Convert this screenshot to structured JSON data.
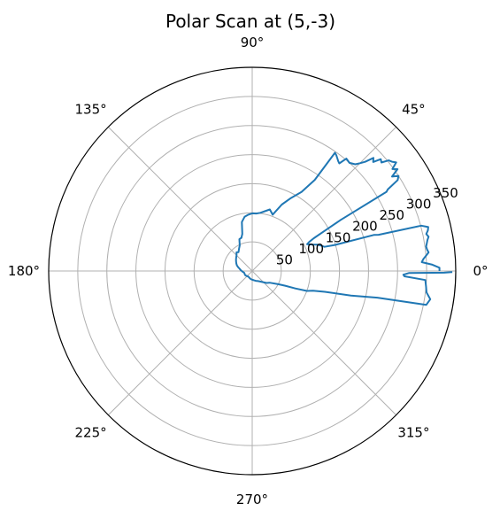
{
  "chart_data": {
    "type": "polar-line",
    "title": "Polar Scan at (5,-3)",
    "angle_tick_labels": [
      "0°",
      "45°",
      "90°",
      "135°",
      "180°",
      "225°",
      "270°",
      "315°"
    ],
    "angle_ticks_deg": [
      0,
      45,
      90,
      135,
      180,
      225,
      270,
      315
    ],
    "radial_tick_labels": [
      "50",
      "100",
      "150",
      "200",
      "250",
      "300",
      "350"
    ],
    "radial_ticks": [
      50,
      100,
      150,
      200,
      250,
      300,
      350
    ],
    "radial_label_angle_deg": 22.5,
    "rmax": 350,
    "grid": true,
    "series": [
      {
        "color": "#1f77b4",
        "points": [
          [
            0,
            322
          ],
          [
            1,
            322
          ],
          [
            2,
            310
          ],
          [
            3,
            292
          ],
          [
            4,
            295
          ],
          [
            5,
            300
          ],
          [
            6,
            305
          ],
          [
            7,
            303
          ],
          [
            8,
            302
          ],
          [
            9,
            304
          ],
          [
            10,
            306
          ],
          [
            11,
            309
          ],
          [
            12,
            306
          ],
          [
            13,
            310
          ],
          [
            14,
            312
          ],
          [
            15,
            301
          ],
          [
            16,
            226
          ],
          [
            16.5,
            218
          ],
          [
            17.5,
            149
          ],
          [
            18.5,
            131
          ],
          [
            20,
            127
          ],
          [
            22,
            121
          ],
          [
            24,
            112
          ],
          [
            26,
            105
          ],
          [
            27,
            110
          ],
          [
            28,
            120
          ],
          [
            29,
            142
          ],
          [
            30,
            176
          ],
          [
            30.5,
            268
          ],
          [
            31,
            272
          ],
          [
            32,
            295
          ],
          [
            33,
            300
          ],
          [
            34,
            290
          ],
          [
            35,
            305
          ],
          [
            36,
            298
          ],
          [
            37,
            310
          ],
          [
            38,
            305
          ],
          [
            39,
            302
          ],
          [
            40,
            290
          ],
          [
            41,
            293
          ],
          [
            42,
            280
          ],
          [
            43,
            285
          ],
          [
            44,
            270
          ],
          [
            45,
            262
          ],
          [
            46,
            255
          ],
          [
            48,
            250
          ],
          [
            50,
            252
          ],
          [
            51,
            238
          ],
          [
            52,
            240
          ],
          [
            53,
            243
          ],
          [
            54,
            246
          ],
          [
            55,
            248
          ],
          [
            55.5,
            190
          ],
          [
            58,
            160
          ],
          [
            62,
            142
          ],
          [
            66,
            125
          ],
          [
            70,
            103
          ],
          [
            74,
            110
          ],
          [
            78,
            105
          ],
          [
            82,
            101
          ],
          [
            86,
            99
          ],
          [
            90,
            99
          ],
          [
            94,
            97
          ],
          [
            98,
            94
          ],
          [
            102,
            86
          ],
          [
            105,
            66
          ],
          [
            108,
            60
          ],
          [
            112,
            59
          ],
          [
            116,
            49
          ],
          [
            120,
            45
          ],
          [
            126,
            40
          ],
          [
            130,
            42
          ],
          [
            135,
            38
          ],
          [
            140,
            36
          ],
          [
            145,
            34
          ],
          [
            150,
            32
          ],
          [
            155,
            30
          ],
          [
            160,
            28
          ],
          [
            165,
            25
          ],
          [
            170,
            22
          ],
          [
            175,
            20
          ],
          [
            180,
            18
          ],
          [
            186,
            16
          ],
          [
            193,
            14
          ],
          [
            200,
            14
          ],
          [
            210,
            14
          ],
          [
            220,
            13
          ],
          [
            230,
            12
          ],
          [
            240,
            12
          ],
          [
            250,
            13
          ],
          [
            260,
            14
          ],
          [
            270,
            15
          ],
          [
            280,
            16
          ],
          [
            290,
            18
          ],
          [
            300,
            20
          ],
          [
            310,
            24
          ],
          [
            320,
            32
          ],
          [
            326,
            36
          ],
          [
            333,
            50
          ],
          [
            336,
            62
          ],
          [
            338,
            80
          ],
          [
            340,
            100
          ],
          [
            342,
            110
          ],
          [
            344,
            130
          ],
          [
            346,
            175
          ],
          [
            348,
            220
          ],
          [
            349,
            305
          ],
          [
            351,
            310
          ],
          [
            353,
            302
          ],
          [
            355,
            300
          ],
          [
            357,
            298
          ],
          [
            358,
            262
          ],
          [
            358.6,
            260
          ],
          [
            359.3,
            270
          ],
          [
            359.5,
            330
          ],
          [
            359.7,
            344
          ]
        ]
      }
    ]
  }
}
